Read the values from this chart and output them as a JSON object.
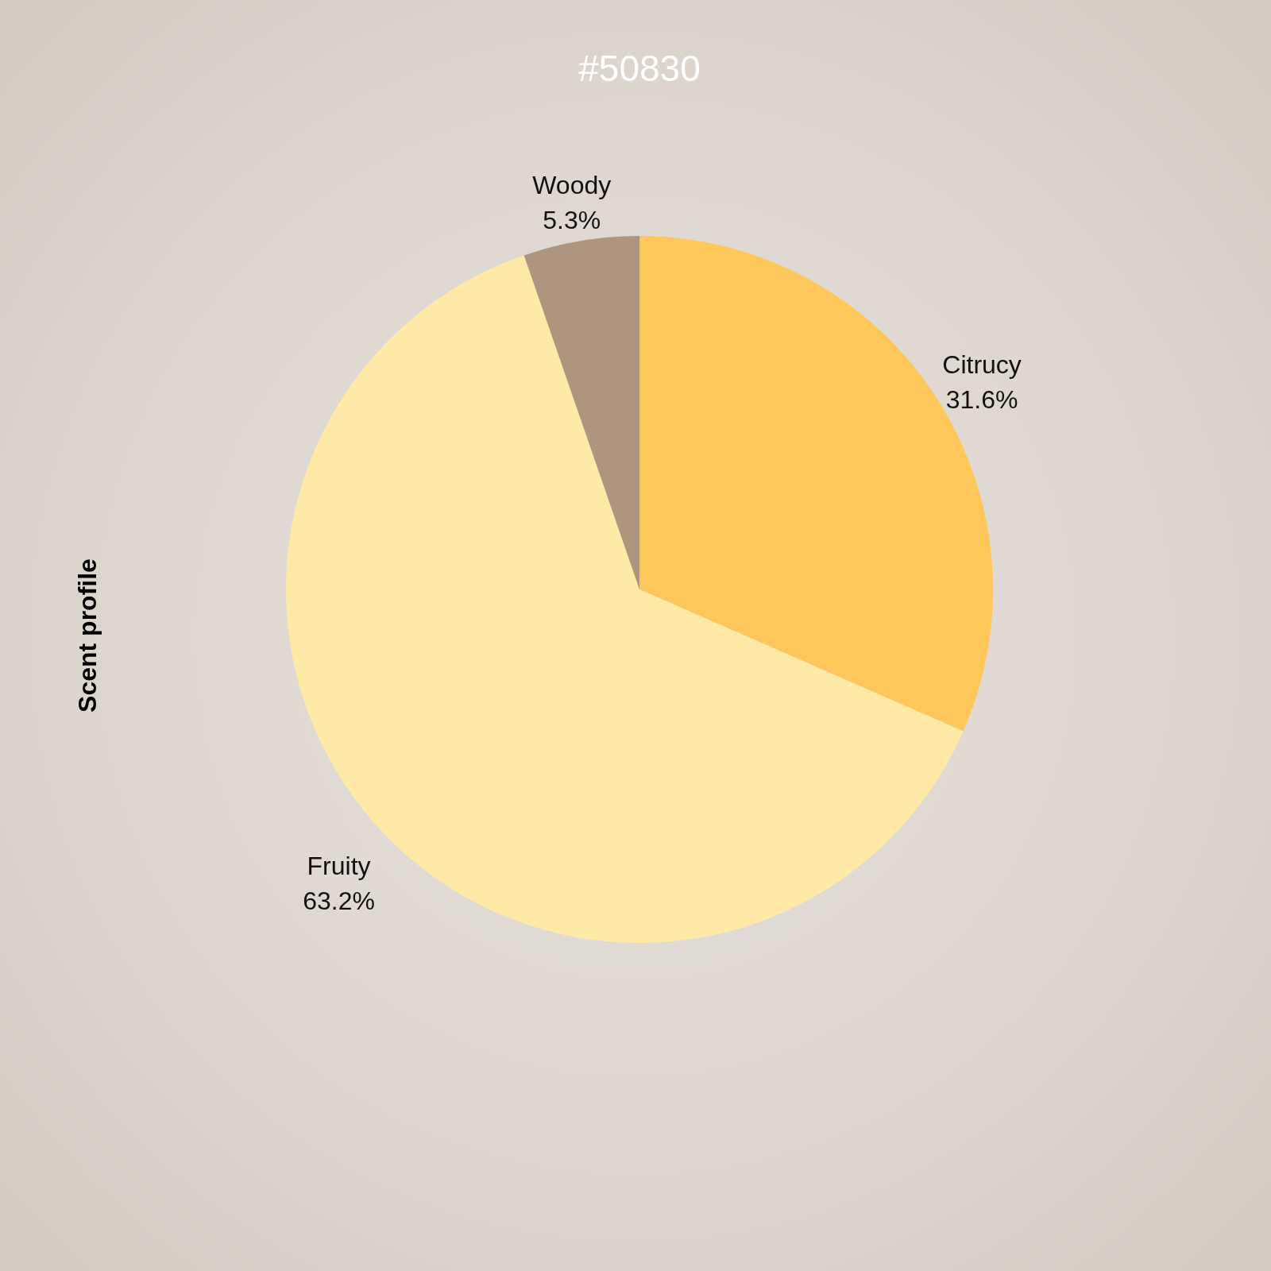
{
  "chart_data": {
    "type": "pie",
    "title": "#50830",
    "ylabel": "Scent profile",
    "categories": [
      "Citrucy",
      "Fruity",
      "Woody"
    ],
    "values": [
      31.6,
      63.2,
      5.3
    ],
    "value_labels": [
      "31.6%",
      "63.2%",
      "5.3%"
    ],
    "colors": [
      "#ffc65a",
      "#ffe9a6",
      "#ae967e"
    ],
    "legend": false
  }
}
